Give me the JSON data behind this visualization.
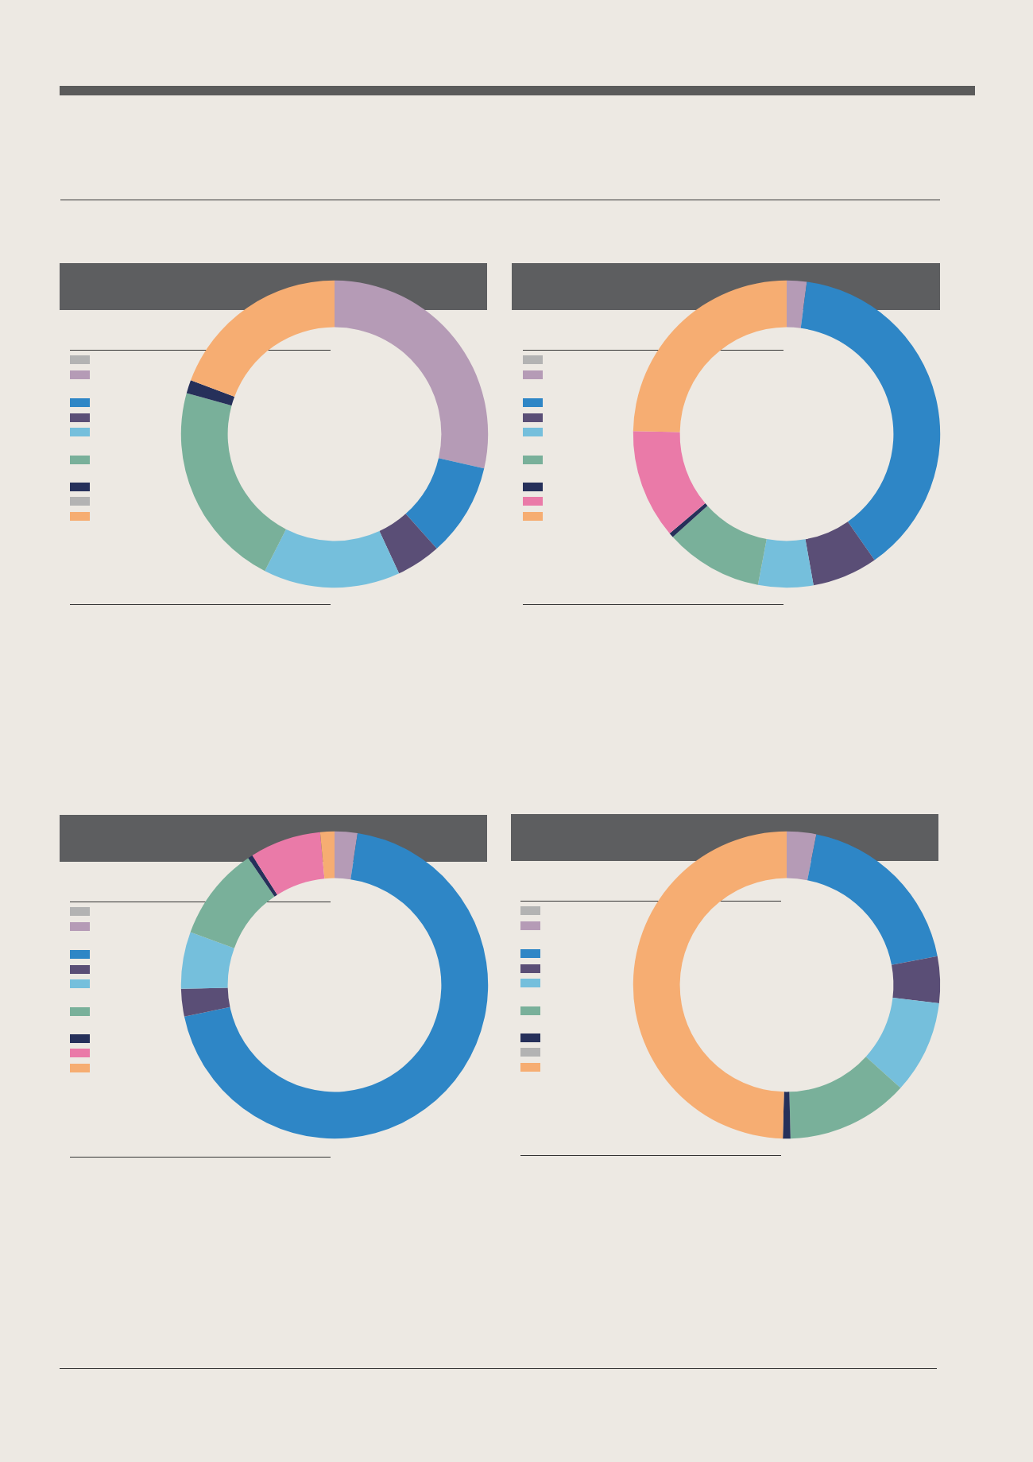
{
  "chart_data": [
    {
      "type": "donut",
      "categories": [
        null,
        null,
        null,
        null,
        null,
        null,
        null,
        null,
        null
      ],
      "values": [
        0,
        28.6,
        9.8,
        4.7,
        14.4,
        21.8,
        1.4,
        0,
        19.3
      ],
      "colors": [
        "#b3b3b3",
        "#b59bb6",
        "#2e86c6",
        "#5a4e76",
        "#75bfdc",
        "#79b09a",
        "#26305a",
        "#b3b3b3",
        "#f6ad72"
      ]
    },
    {
      "type": "donut",
      "categories": [
        null,
        null,
        null,
        null,
        null,
        null,
        null,
        null,
        null
      ],
      "values": [
        0,
        2.1,
        38.2,
        6.9,
        5.8,
        10.3,
        0.5,
        11.5,
        24.7
      ],
      "colors": [
        "#b3b3b3",
        "#b59bb6",
        "#2e86c6",
        "#5a4e76",
        "#75bfdc",
        "#79b09a",
        "#26305a",
        "#ea7aa8",
        "#f6ad72"
      ]
    },
    {
      "type": "donut",
      "categories": [
        null,
        null,
        null,
        null,
        null,
        null,
        null,
        null,
        null
      ],
      "values": [
        0,
        2.4,
        69.3,
        2.9,
        6,
        9.9,
        0.5,
        7.5,
        1.5
      ],
      "colors": [
        "#b3b3b3",
        "#b59bb6",
        "#2e86c6",
        "#5a4e76",
        "#75bfdc",
        "#79b09a",
        "#26305a",
        "#ea7aa8",
        "#f6ad72"
      ]
    },
    {
      "type": "donut",
      "categories": [
        null,
        null,
        null,
        null,
        null,
        null,
        null,
        null,
        null
      ],
      "values": [
        0,
        3.1,
        18.9,
        4.9,
        9.8,
        12.9,
        0.8,
        0,
        49.6
      ],
      "colors": [
        "#b3b3b3",
        "#b59bb6",
        "#2e86c6",
        "#5a4e76",
        "#75bfdc",
        "#79b09a",
        "#26305a",
        "#b3b3b3",
        "#f6ad72"
      ]
    }
  ]
}
